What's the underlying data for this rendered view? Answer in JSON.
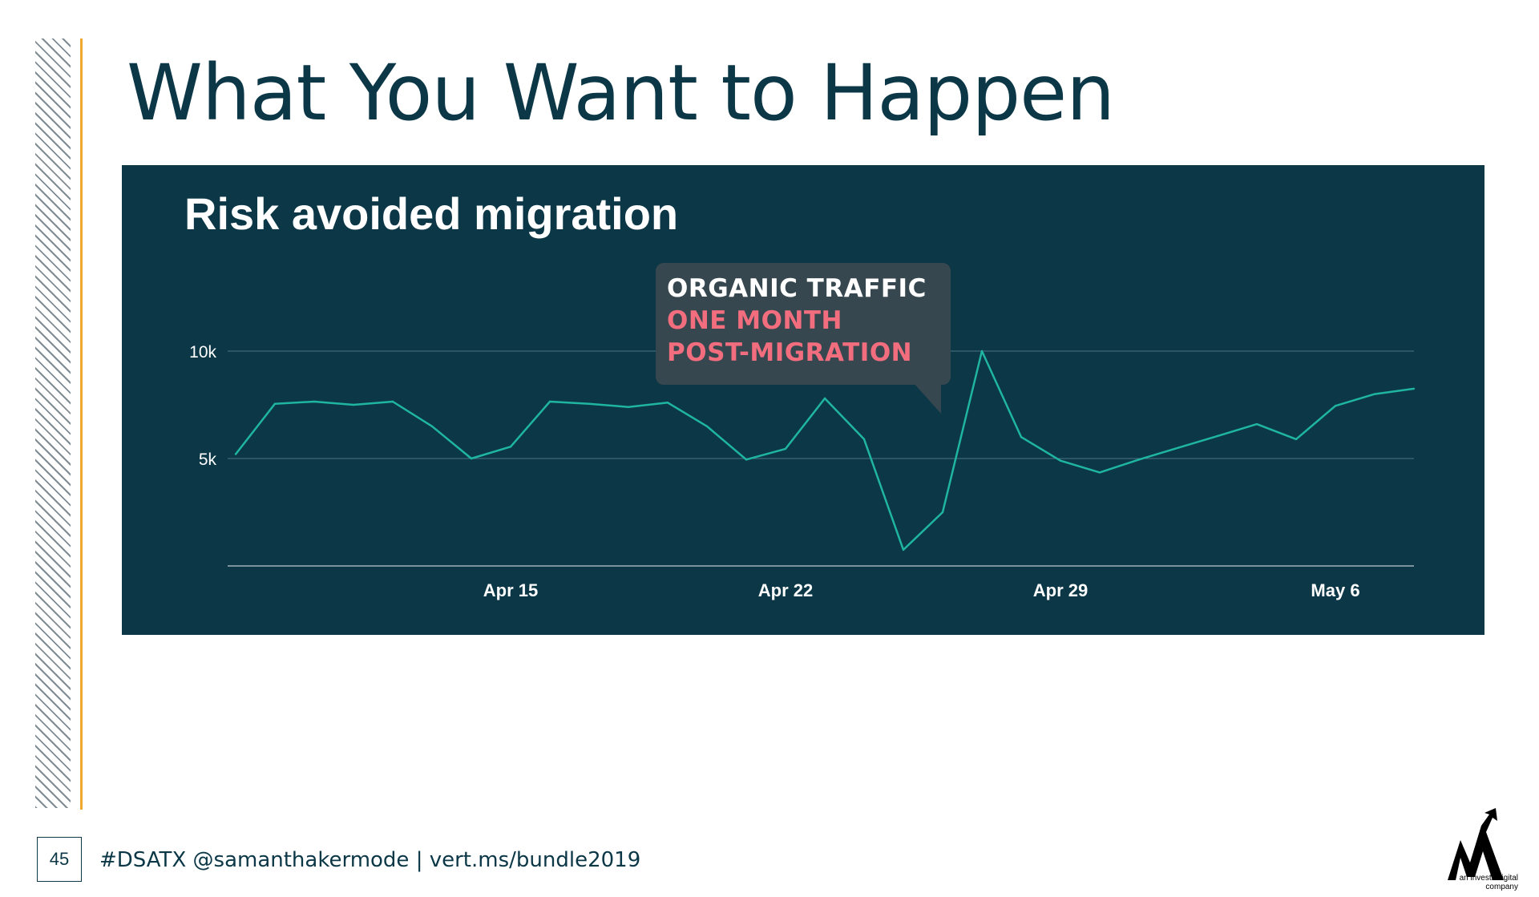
{
  "slide": {
    "title": "What You Want to Happen",
    "page_number": "45",
    "footer": "#DSATX @samanthakermode  | vert.ms/bundle2019",
    "logo_caption": "an investisdigital company"
  },
  "tooltip": {
    "line1": "ORGANIC TRAFFIC",
    "line2": "ONE MONTH",
    "line3": "POST-MIGRATION"
  },
  "colors": {
    "title": "#0b3747",
    "panel_bg": "#0b3747",
    "line": "#1fb5a0",
    "accent_bar": "#f0a92e",
    "highlight": "#f26d7d"
  },
  "chart_data": {
    "type": "line",
    "title": "Risk avoided migration",
    "xlabel": "",
    "ylabel": "",
    "x_ticks": [
      "Apr 15",
      "Apr 22",
      "Apr 29",
      "May 6"
    ],
    "y_ticks": [
      "5k",
      "10k"
    ],
    "y_tick_values": [
      5000,
      10000
    ],
    "ylim": [
      0,
      10000
    ],
    "grid": true,
    "series": [
      {
        "values": [
          {
            "x": "Apr 8",
            "y": 5200
          },
          {
            "x": "Apr 9",
            "y": 7550
          },
          {
            "x": "Apr 10",
            "y": 7650
          },
          {
            "x": "Apr 11",
            "y": 7500
          },
          {
            "x": "Apr 12",
            "y": 7650
          },
          {
            "x": "Apr 13",
            "y": 6500
          },
          {
            "x": "Apr 14",
            "y": 5000
          },
          {
            "x": "Apr 15",
            "y": 5550
          },
          {
            "x": "Apr 16",
            "y": 7650
          },
          {
            "x": "Apr 17",
            "y": 7550
          },
          {
            "x": "Apr 18",
            "y": 7400
          },
          {
            "x": "Apr 19",
            "y": 7600
          },
          {
            "x": "Apr 20",
            "y": 6500
          },
          {
            "x": "Apr 21",
            "y": 4950
          },
          {
            "x": "Apr 22",
            "y": 5450
          },
          {
            "x": "Apr 23",
            "y": 7800
          },
          {
            "x": "Apr 24",
            "y": 5900
          },
          {
            "x": "Apr 25",
            "y": 750
          },
          {
            "x": "Apr 26",
            "y": 2500
          },
          {
            "x": "Apr 27",
            "y": 10000
          },
          {
            "x": "Apr 28",
            "y": 6000
          },
          {
            "x": "Apr 29",
            "y": 4900
          },
          {
            "x": "Apr 30",
            "y": 4350
          },
          {
            "x": "May 1",
            "y": 4950
          },
          {
            "x": "May 2",
            "y": 5500
          },
          {
            "x": "May 3",
            "y": 6050
          },
          {
            "x": "May 4",
            "y": 6600
          },
          {
            "x": "May 5",
            "y": 5900
          },
          {
            "x": "May 6",
            "y": 7450
          },
          {
            "x": "May 7",
            "y": 8000
          },
          {
            "x": "May 8",
            "y": 8250
          }
        ]
      }
    ]
  }
}
